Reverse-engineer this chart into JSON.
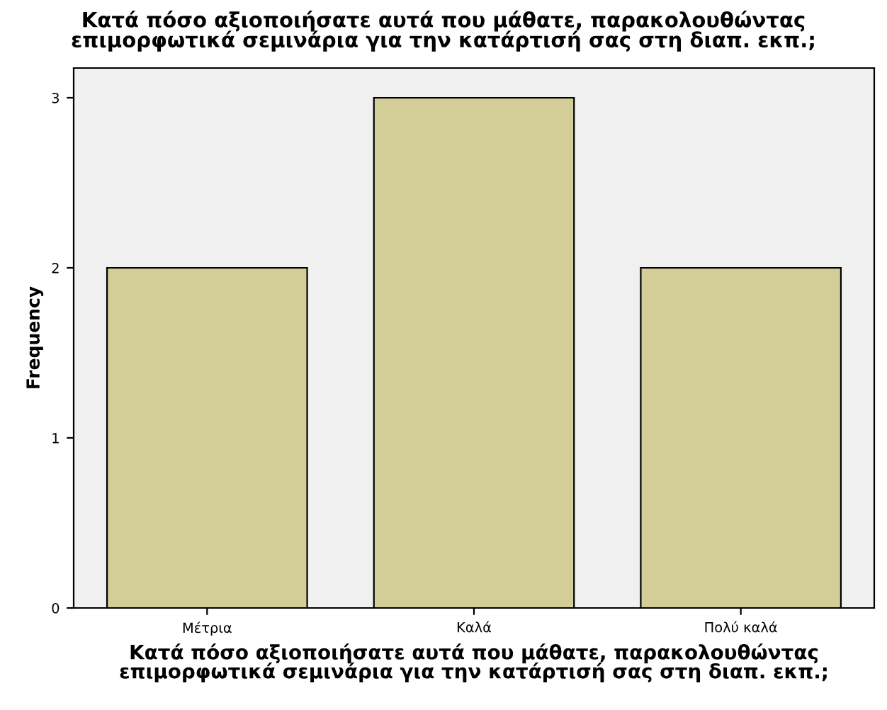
{
  "chart_data": {
    "type": "bar",
    "title": "Κατά πόσο αξιοποιήσατε αυτά που μάθατε, παρακολουθώντας\nεπιμορφωτικά σεμινάρια για την κατάρτισή σας στη διαπ. εκπ.;",
    "xlabel": "Κατά πόσο αξιοποιήσατε αυτά που μάθατε, παρακολουθώντας\nεπιμορφωτικά σεμινάρια για την κατάρτισή σας στη διαπ. εκπ.;",
    "ylabel": "Frequency",
    "categories": [
      "Μέτρια",
      "Καλά",
      "Πολύ καλά"
    ],
    "values": [
      2,
      3,
      2
    ],
    "color": "#d3ce97",
    "ylim": [
      0,
      3.175
    ],
    "yticks": [
      0,
      1,
      2,
      3
    ],
    "grid": false
  }
}
